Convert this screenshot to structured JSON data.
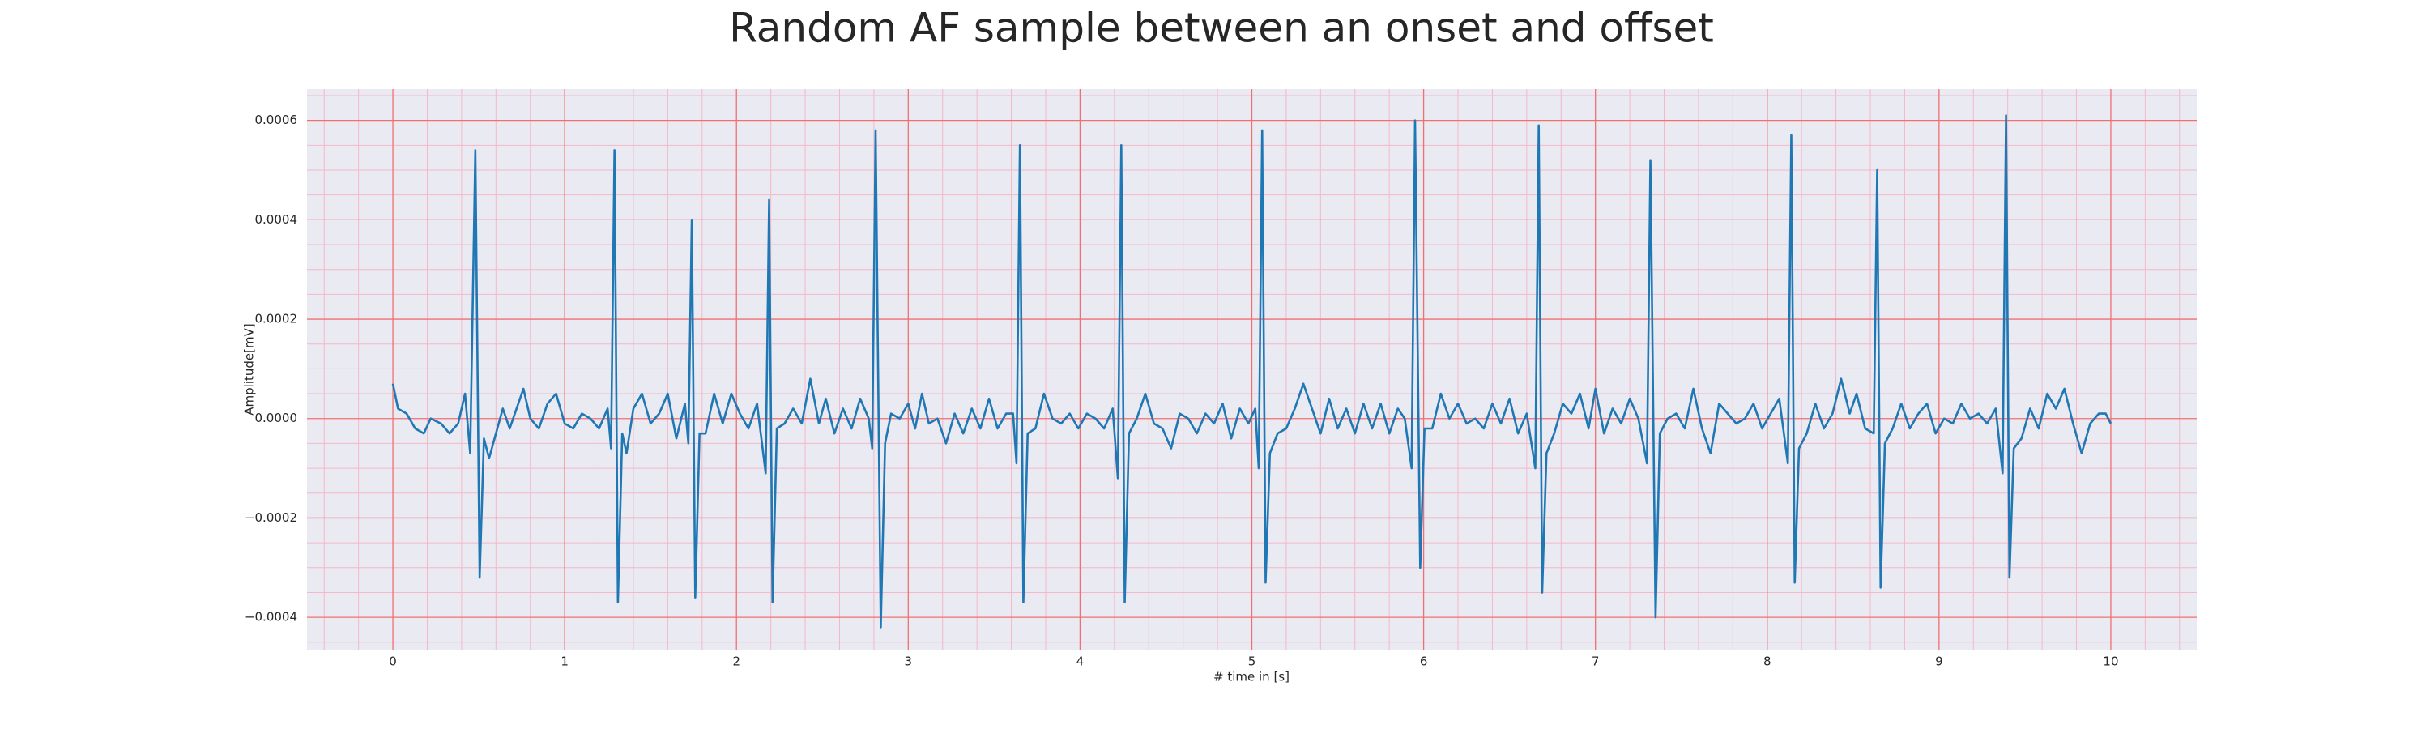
{
  "chart_data": {
    "type": "line",
    "title": "Random AF sample between an onset and offset",
    "xlabel": "# time in [s]",
    "ylabel": "Amplitude[mV]",
    "color": "#1f77b4",
    "grid": true,
    "minor_grid": true,
    "xlim": [
      -0.5,
      10.5
    ],
    "ylim": [
      -0.000465,
      0.000663
    ],
    "xticks": [
      0,
      1,
      2,
      3,
      4,
      5,
      6,
      7,
      8,
      9,
      10
    ],
    "yticks": [
      {
        "value": -0.0004,
        "label": "−0.0004"
      },
      {
        "value": -0.0002,
        "label": "−0.0002"
      },
      {
        "value": 0,
        "label": "0.0000"
      },
      0.0002,
      0.0004,
      0.0006
    ],
    "x": [
      0,
      0.03,
      0.08,
      0.13,
      0.18,
      0.22,
      0.28,
      0.33,
      0.38,
      0.42,
      0.45,
      0.48,
      0.505,
      0.53,
      0.56,
      0.6,
      0.64,
      0.68,
      0.72,
      0.76,
      0.8,
      0.85,
      0.9,
      0.95,
      1.0,
      1.05,
      1.1,
      1.15,
      1.2,
      1.25,
      1.27,
      1.29,
      1.31,
      1.335,
      1.36,
      1.4,
      1.45,
      1.5,
      1.55,
      1.6,
      1.65,
      1.7,
      1.72,
      1.74,
      1.76,
      1.785,
      1.82,
      1.87,
      1.92,
      1.97,
      2.02,
      2.07,
      2.12,
      2.17,
      2.19,
      2.21,
      2.235,
      2.28,
      2.33,
      2.38,
      2.43,
      2.48,
      2.52,
      2.57,
      2.62,
      2.67,
      2.72,
      2.77,
      2.79,
      2.81,
      2.84,
      2.865,
      2.9,
      2.95,
      3.0,
      3.04,
      3.08,
      3.12,
      3.17,
      3.22,
      3.27,
      3.32,
      3.37,
      3.42,
      3.47,
      3.52,
      3.57,
      3.61,
      3.63,
      3.65,
      3.67,
      3.695,
      3.74,
      3.79,
      3.84,
      3.89,
      3.94,
      3.99,
      4.04,
      4.09,
      4.14,
      4.19,
      4.22,
      4.24,
      4.26,
      4.285,
      4.33,
      4.38,
      4.43,
      4.48,
      4.53,
      4.58,
      4.63,
      4.68,
      4.73,
      4.78,
      4.83,
      4.88,
      4.93,
      4.98,
      5.02,
      5.04,
      5.06,
      5.08,
      5.105,
      5.15,
      5.2,
      5.25,
      5.3,
      5.35,
      5.4,
      5.45,
      5.5,
      5.55,
      5.6,
      5.65,
      5.7,
      5.75,
      5.8,
      5.85,
      5.89,
      5.93,
      5.95,
      5.98,
      6.005,
      6.05,
      6.1,
      6.15,
      6.2,
      6.25,
      6.3,
      6.35,
      6.4,
      6.45,
      6.5,
      6.55,
      6.6,
      6.65,
      6.67,
      6.69,
      6.715,
      6.76,
      6.81,
      6.86,
      6.91,
      6.96,
      7.0,
      7.05,
      7.1,
      7.15,
      7.2,
      7.25,
      7.3,
      7.32,
      7.35,
      7.375,
      7.42,
      7.47,
      7.52,
      7.57,
      7.62,
      7.67,
      7.72,
      7.77,
      7.82,
      7.87,
      7.92,
      7.97,
      8.02,
      8.07,
      8.12,
      8.14,
      8.16,
      8.185,
      8.23,
      8.28,
      8.33,
      8.38,
      8.43,
      8.48,
      8.52,
      8.57,
      8.62,
      8.64,
      8.66,
      8.685,
      8.73,
      8.78,
      8.83,
      8.88,
      8.93,
      8.98,
      9.03,
      9.08,
      9.13,
      9.18,
      9.23,
      9.28,
      9.33,
      9.37,
      9.39,
      9.41,
      9.435,
      9.48,
      9.53,
      9.58,
      9.63,
      9.68,
      9.73,
      9.78,
      9.83,
      9.88,
      9.93,
      9.97,
      10.0
    ],
    "values": [
      7e-05,
      2e-05,
      1e-05,
      -2e-05,
      -3e-05,
      0.0,
      -1e-05,
      -3e-05,
      -1e-05,
      5e-05,
      -7e-05,
      0.00054,
      -0.00032,
      -4e-05,
      -8e-05,
      -3e-05,
      2e-05,
      -2e-05,
      2e-05,
      6e-05,
      0.0,
      -2e-05,
      3e-05,
      5e-05,
      -1e-05,
      -2e-05,
      1e-05,
      0.0,
      -2e-05,
      2e-05,
      -6e-05,
      0.00054,
      -0.00037,
      -3e-05,
      -7e-05,
      2e-05,
      5e-05,
      -1e-05,
      1e-05,
      5e-05,
      -4e-05,
      3e-05,
      -5e-05,
      0.0004,
      -0.00036,
      -3e-05,
      -3e-05,
      5e-05,
      -1e-05,
      5e-05,
      1e-05,
      -2e-05,
      3e-05,
      -0.00011,
      0.00044,
      -0.00037,
      -2e-05,
      -1e-05,
      2e-05,
      -1e-05,
      8e-05,
      -1e-05,
      4e-05,
      -3e-05,
      2e-05,
      -2e-05,
      4e-05,
      0.0,
      -6e-05,
      0.00058,
      -0.00042,
      -5e-05,
      1e-05,
      0.0,
      3e-05,
      -2e-05,
      5e-05,
      -1e-05,
      0.0,
      -5e-05,
      1e-05,
      -3e-05,
      2e-05,
      -2e-05,
      4e-05,
      -2e-05,
      1e-05,
      1e-05,
      -9e-05,
      0.00055,
      -0.00037,
      -3e-05,
      -2e-05,
      5e-05,
      0.0,
      -1e-05,
      1e-05,
      -2e-05,
      1e-05,
      0.0,
      -2e-05,
      2e-05,
      -0.00012,
      0.00055,
      -0.00037,
      -3e-05,
      0.0,
      5e-05,
      -1e-05,
      -2e-05,
      -6e-05,
      1e-05,
      0.0,
      -3e-05,
      1e-05,
      -1e-05,
      3e-05,
      -4e-05,
      2e-05,
      -1e-05,
      2e-05,
      -0.0001,
      0.00058,
      -0.00033,
      -7e-05,
      -3e-05,
      -2e-05,
      2e-05,
      7e-05,
      2e-05,
      -3e-05,
      4e-05,
      -2e-05,
      2e-05,
      -3e-05,
      3e-05,
      -2e-05,
      3e-05,
      -3e-05,
      2e-05,
      0.0,
      -0.0001,
      0.0006,
      -0.0003,
      -2e-05,
      -2e-05,
      5e-05,
      0.0,
      3e-05,
      -1e-05,
      0.0,
      -2e-05,
      3e-05,
      -1e-05,
      4e-05,
      -3e-05,
      1e-05,
      -0.0001,
      0.00059,
      -0.00035,
      -7e-05,
      -3e-05,
      3e-05,
      1e-05,
      5e-05,
      -2e-05,
      6e-05,
      -3e-05,
      2e-05,
      -1e-05,
      4e-05,
      0.0,
      -9e-05,
      0.00052,
      -0.0004,
      -3e-05,
      0.0,
      1e-05,
      -2e-05,
      6e-05,
      -2e-05,
      -7e-05,
      3e-05,
      1e-05,
      -1e-05,
      0.0,
      3e-05,
      -2e-05,
      1e-05,
      4e-05,
      -9e-05,
      0.00057,
      -0.00033,
      -6e-05,
      -3e-05,
      3e-05,
      -2e-05,
      1e-05,
      8e-05,
      1e-05,
      5e-05,
      -2e-05,
      -3e-05,
      0.0005,
      -0.00034,
      -5e-05,
      -2e-05,
      3e-05,
      -2e-05,
      1e-05,
      3e-05,
      -3e-05,
      0.0,
      -1e-05,
      3e-05,
      0.0,
      1e-05,
      -1e-05,
      2e-05,
      -0.00011,
      0.00061,
      -0.00032,
      -6e-05,
      -4e-05,
      2e-05,
      -2e-05,
      5e-05,
      2e-05,
      6e-05,
      -1e-05,
      -7e-05,
      -1e-05,
      1e-05,
      1e-05,
      -1e-05
    ]
  }
}
